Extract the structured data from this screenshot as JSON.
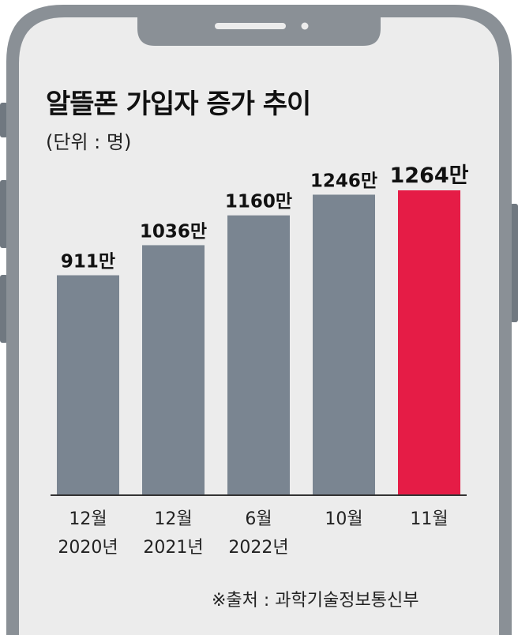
{
  "title": "알뜰폰 가입자 증가 추이",
  "unit_label": "(단위 : 명)",
  "source": "※출처 : 과학기술정보통신부",
  "colors": {
    "screen": "#ececec",
    "frame": "#8a9096",
    "bar": "#7a8591",
    "highlight": "#e51c46"
  },
  "chart_data": {
    "type": "bar",
    "categories": [
      [
        "12월",
        "2020년"
      ],
      [
        "12월",
        "2021년"
      ],
      [
        "6월",
        "2022년"
      ],
      [
        "10월",
        ""
      ],
      [
        "11월",
        ""
      ]
    ],
    "values": [
      911,
      1036,
      1160,
      1246,
      1264
    ],
    "data_labels": [
      "911만",
      "1036만",
      "1160만",
      "1246만",
      "1264만"
    ],
    "highlight_index": 4,
    "ylim": [
      0,
      1264
    ],
    "grid": false,
    "xlabel": "",
    "ylabel": ""
  }
}
